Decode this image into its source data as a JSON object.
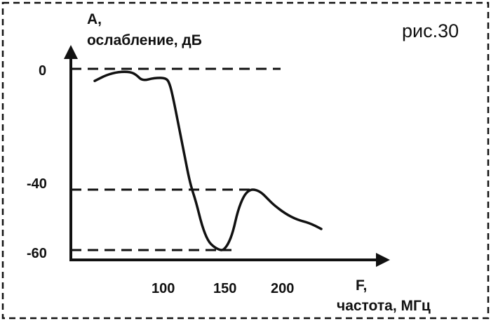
{
  "figure_label": "рис.30",
  "y_axis": {
    "symbol": "А,",
    "label": "ослабление, дБ",
    "ticks": [
      "0",
      "-40",
      "-60"
    ]
  },
  "x_axis": {
    "symbol": "F,",
    "label": "частота, МГц",
    "ticks": [
      "100",
      "150",
      "200"
    ]
  },
  "colors": {
    "ink": "#111111",
    "background": "#ffffff"
  },
  "chart_data": {
    "type": "line",
    "title": "",
    "xlabel": "F, частота, МГц",
    "ylabel": "А, ослабление, дБ",
    "x_ticks": [
      100,
      150,
      200
    ],
    "y_ticks": [
      0,
      -40,
      -60
    ],
    "reference_lines": [
      0,
      -40,
      -60
    ],
    "grid": false,
    "series": [
      {
        "x": [
          40,
          50,
          60,
          70,
          75,
          80,
          90,
          100,
          103,
          106,
          110,
          115,
          120,
          125,
          130,
          135,
          140,
          145,
          148,
          152,
          156,
          160,
          165,
          170,
          175,
          180,
          185,
          190,
          200,
          210,
          220,
          230
        ],
        "y": [
          -4,
          -2,
          -1,
          -1,
          -2,
          -4,
          -3,
          -3,
          -5,
          -10,
          -18,
          -28,
          -38,
          -44,
          -52,
          -57,
          -59,
          -60,
          -60,
          -58,
          -54,
          -47,
          -42,
          -40,
          -40,
          -41,
          -43,
          -45,
          -48,
          -50,
          -51,
          -53
        ]
      }
    ]
  }
}
